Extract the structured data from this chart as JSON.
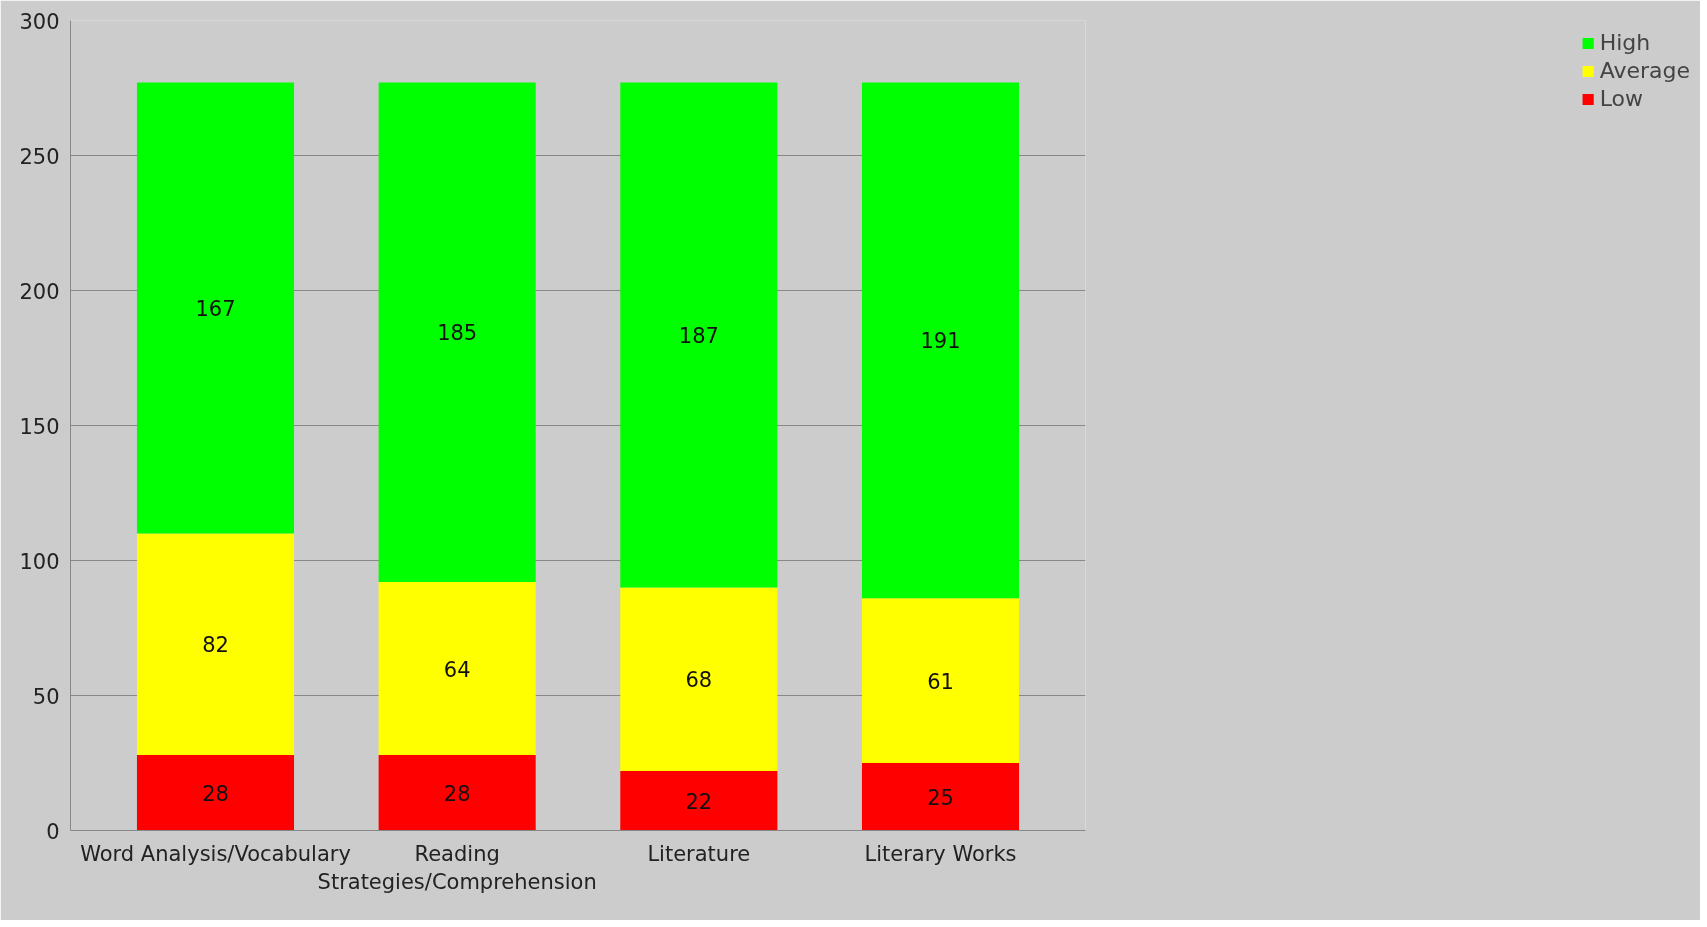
{
  "chart_data": {
    "type": "bar",
    "stacked": true,
    "categories": [
      "Word Analysis/Vocabulary",
      "Reading\nStrategies/Comprehension",
      "Literature",
      "Literary Works"
    ],
    "series": [
      {
        "name": "Low",
        "color": "#ff0000",
        "values": [
          28,
          28,
          22,
          25
        ]
      },
      {
        "name": "Average",
        "color": "#ffff00",
        "values": [
          82,
          64,
          68,
          61
        ]
      },
      {
        "name": "High",
        "color": "#00ff00",
        "values": [
          167,
          185,
          187,
          191
        ]
      }
    ],
    "ylim": [
      0,
      300
    ],
    "yticks": [
      0,
      50,
      100,
      150,
      200,
      250,
      300
    ],
    "grid": "y",
    "legend": "right",
    "data_labels": true
  }
}
